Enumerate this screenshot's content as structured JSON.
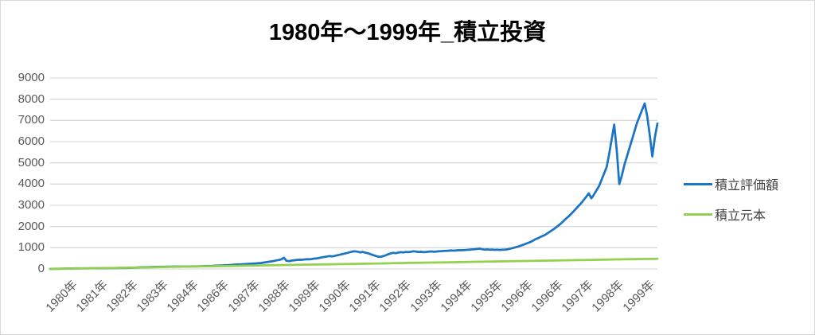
{
  "title": "1980年〜1999年_積立投資",
  "colors": {
    "evaluation_line": "#1B74C4",
    "principal_line": "#92D050",
    "gridline": "#D9D9D9",
    "axis_text": "#595959",
    "legend_text": "#404040",
    "title_text": "#000000",
    "chart_border": "#D9D9D9"
  },
  "y_axis": {
    "tick_labels": [
      "0",
      "1000",
      "2000",
      "3000",
      "4000",
      "5000",
      "6000",
      "7000",
      "8000",
      "9000"
    ],
    "min": 0,
    "max": 9000
  },
  "x_axis": {
    "tick_labels": [
      "1980年",
      "1981年",
      "1982年",
      "1983年",
      "1984年",
      "1986年",
      "1987年",
      "1988年",
      "1989年",
      "1990年",
      "1991年",
      "1992年",
      "1993年",
      "1994年",
      "1995年",
      "1996年",
      "1996年",
      "1997年",
      "1998年",
      "1999年"
    ]
  },
  "legend": {
    "items": [
      {
        "label": "積立評価額",
        "color": "#1B74C4"
      },
      {
        "label": "積立元本",
        "color": "#92D050"
      }
    ]
  },
  "chart_data": {
    "type": "line",
    "title": "1980年〜1999年_積立投資",
    "xlabel": "",
    "ylabel": "",
    "x_range_years": [
      1980,
      2000
    ],
    "ylim": [
      0,
      9000
    ],
    "grid": "horizontal",
    "legend_position": "right",
    "series": [
      {
        "name": "積立評価額",
        "color": "#1B74C4",
        "sampling": "monthly",
        "start_year": 1980,
        "values_by_year": [
          [
            2,
            5,
            7,
            9,
            12,
            14,
            17,
            19,
            21,
            24,
            26,
            28
          ],
          [
            27,
            29,
            31,
            30,
            32,
            33,
            35,
            34,
            36,
            38,
            39,
            41
          ],
          [
            42,
            43,
            42,
            44,
            45,
            46,
            48,
            51,
            56,
            61,
            67,
            74
          ],
          [
            78,
            83,
            87,
            91,
            94,
            96,
            99,
            101,
            102,
            105,
            107,
            110
          ],
          [
            111,
            113,
            112,
            114,
            113,
            115,
            116,
            118,
            119,
            121,
            124,
            127
          ],
          [
            131,
            135,
            139,
            144,
            148,
            153,
            157,
            163,
            168,
            175,
            181,
            188
          ],
          [
            197,
            205,
            212,
            218,
            226,
            234,
            240,
            246,
            254,
            261,
            269,
            278
          ],
          [
            300,
            318,
            336,
            355,
            375,
            400,
            425,
            455,
            530,
            385,
            368,
            395
          ],
          [
            408,
            422,
            436,
            430,
            446,
            460,
            452,
            468,
            486,
            502,
            522,
            548
          ],
          [
            565,
            587,
            606,
            592,
            616,
            646,
            672,
            702,
            726,
            757,
            792,
            822
          ],
          [
            833,
            812,
            782,
            802,
            770,
            741,
            701,
            661,
            621,
            581,
            571,
            601
          ],
          [
            641,
            691,
            731,
            762,
            742,
            771,
            791,
            781,
            801,
            791,
            811,
            831
          ],
          [
            821,
            801,
            811,
            791,
            801,
            816,
            826,
            811,
            821,
            831,
            841,
            851
          ],
          [
            856,
            861,
            871,
            861,
            876,
            886,
            881,
            891,
            901,
            911,
            921,
            931
          ],
          [
            941,
            956,
            931,
            911,
            921,
            906,
            916,
            901,
            911,
            896,
            906,
            911
          ],
          [
            926,
            951,
            981,
            1016,
            1051,
            1091,
            1131,
            1176,
            1221,
            1271,
            1331,
            1401
          ],
          [
            1451,
            1511,
            1561,
            1621,
            1701,
            1781,
            1861,
            1951,
            2041,
            2141,
            2251,
            2371
          ],
          [
            2471,
            2591,
            2711,
            2841,
            2971,
            3101,
            3251,
            3401,
            3561,
            3331,
            3501,
            3701
          ],
          [
            3901,
            4201,
            4501,
            4801,
            5401,
            6101,
            6801,
            5601,
            4001,
            4401,
            4901,
            5301
          ],
          [
            5701,
            6101,
            6501,
            6901,
            7201,
            7501,
            7801,
            7201,
            6301,
            5301,
            6201,
            6851
          ]
        ]
      },
      {
        "name": "積立元本",
        "color": "#92D050",
        "sampling": "yearly",
        "points": [
          [
            1980,
            0
          ],
          [
            1981,
            24
          ],
          [
            1982,
            48
          ],
          [
            1983,
            72
          ],
          [
            1984,
            96
          ],
          [
            1985,
            120
          ],
          [
            1986,
            144
          ],
          [
            1987,
            168
          ],
          [
            1988,
            192
          ],
          [
            1989,
            216
          ],
          [
            1990,
            240
          ],
          [
            1991,
            264
          ],
          [
            1992,
            288
          ],
          [
            1993,
            312
          ],
          [
            1994,
            336
          ],
          [
            1995,
            360
          ],
          [
            1996,
            384
          ],
          [
            1997,
            408
          ],
          [
            1998,
            432
          ],
          [
            1999,
            456
          ],
          [
            2000,
            480
          ]
        ]
      }
    ]
  }
}
